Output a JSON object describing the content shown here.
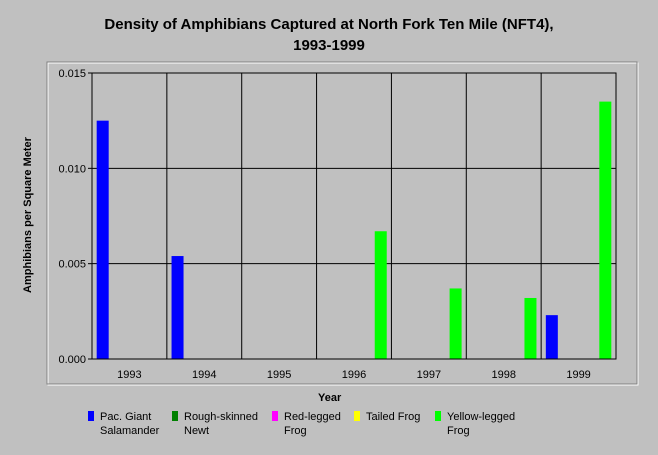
{
  "chart_data": {
    "type": "bar",
    "title": "Density of Amphibians Captured at North Fork Ten Mile (NFT4), 1993-1999",
    "title_lines": [
      "Density of Amphibians Captured at North Fork Ten Mile (NFT4),",
      "1993-1999"
    ],
    "xlabel": "Year",
    "ylabel": "Amphibians per Square Meter",
    "categories": [
      "1993",
      "1994",
      "1995",
      "1996",
      "1997",
      "1998",
      "1999"
    ],
    "ylim": [
      0,
      0.015
    ],
    "yticks": [
      "0.000",
      "0.005",
      "0.010",
      "0.015"
    ],
    "grid": true,
    "legend_position": "bottom",
    "series": [
      {
        "name": "Pac. Giant Salamander",
        "color": "#0000ff",
        "values": [
          0.0125,
          0.0054,
          0,
          0,
          0,
          0,
          0.0023
        ]
      },
      {
        "name": "Rough-skinned Newt",
        "color": "#008000",
        "values": [
          0,
          0,
          0,
          0,
          0,
          0,
          0
        ]
      },
      {
        "name": "Red-legged Frog",
        "color": "#ff00ff",
        "values": [
          0,
          0,
          0,
          0,
          0,
          0,
          0
        ]
      },
      {
        "name": "Tailed Frog",
        "color": "#ffff00",
        "values": [
          0,
          0,
          0,
          0,
          0,
          0,
          0
        ]
      },
      {
        "name": "Yellow-legged Frog",
        "color": "#00ff00",
        "values": [
          0,
          0,
          0,
          0.0067,
          0.0037,
          0.0032,
          0.0135
        ]
      }
    ],
    "legend": [
      {
        "lines": [
          "Pac. Giant",
          "Salamander"
        ],
        "color": "#0000ff"
      },
      {
        "lines": [
          "Rough-skinned",
          "Newt"
        ],
        "color": "#008000"
      },
      {
        "lines": [
          "Red-legged",
          "Frog"
        ],
        "color": "#ff00ff"
      },
      {
        "lines": [
          "Tailed Frog"
        ],
        "color": "#ffff00"
      },
      {
        "lines": [
          "Yellow-legged",
          "Frog"
        ],
        "color": "#00ff00"
      }
    ]
  }
}
